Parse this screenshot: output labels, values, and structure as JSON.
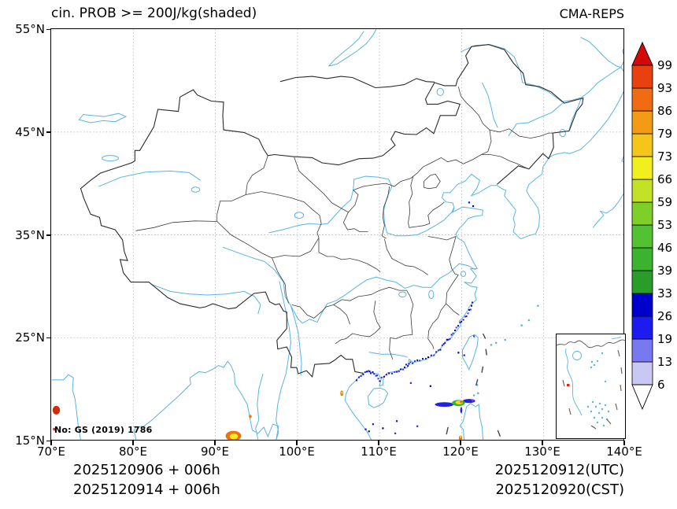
{
  "header": {
    "title": "cin. PROB >= 200J/kg(shaded)",
    "model": "CMA-REPS"
  },
  "map_note": {
    "license": "No: GS (2019) 1786"
  },
  "footer": {
    "runs": [
      "2025120906  +  006h",
      "2025120914  +  006h"
    ],
    "valid": [
      "2025120912(UTC)",
      "2025120920(CST)"
    ]
  },
  "axes": {
    "x_tick_labels": [
      "70°E",
      "80°E",
      "90°E",
      "100°E",
      "110°E",
      "120°E",
      "130°E",
      "140°E"
    ],
    "y_tick_labels": [
      "55°N",
      "45°N",
      "35°N",
      "25°N",
      "15°N"
    ],
    "lon_range": [
      70,
      140
    ],
    "lat_range": [
      15,
      55
    ],
    "grid": "dotted-gray"
  },
  "colorbar": {
    "levels": [
      6,
      13,
      19,
      26,
      33,
      39,
      46,
      53,
      59,
      66,
      73,
      79,
      86,
      93,
      99
    ],
    "segment_colors": [
      "#c8c8f2",
      "#7878f0",
      "#1c1cf0",
      "#0000cd",
      "#2a9c2a",
      "#3cb32e",
      "#52c233",
      "#7ecf28",
      "#c3e227",
      "#f2ef1f",
      "#f6c51c",
      "#f49b15",
      "#ef6c12",
      "#e8400e"
    ],
    "over_color": "#d40909",
    "under_color": "#ffffff"
  },
  "chart_data": {
    "type": "heatmap",
    "variable": "cin. PROB >= 200J/kg",
    "units": "%",
    "title": "cin. PROB >= 200J/kg(shaded)",
    "model": "CMA-REPS",
    "init_run_utc": "2025120906 + 006h",
    "init_run_cst": "2025120914 + 006h",
    "valid_utc": "2025120912(UTC)",
    "valid_cst": "2025120920(CST)",
    "lon_range": [
      70,
      140
    ],
    "lat_range": [
      15,
      55
    ],
    "levels": [
      6,
      13,
      19,
      26,
      33,
      39,
      46,
      53,
      59,
      66,
      73,
      79,
      86,
      93,
      99
    ],
    "shaded_regions": [
      {
        "name": "arabian-sea-red-blob",
        "lon": 70.62,
        "lat": 17.95,
        "rx": 0.45,
        "ry": 0.42,
        "color": "#d42a0a"
      },
      {
        "name": "arabian-sea-red-speck",
        "lon": 70.35,
        "lat": 16.1,
        "rx": 0.14,
        "ry": 0.14,
        "color": "#d42a0a"
      },
      {
        "name": "myanmar-coast-orange",
        "lon": 92.2,
        "lat": 15.45,
        "rx": 0.95,
        "ry": 0.5,
        "color": "#f07010"
      },
      {
        "name": "myanmar-coast-yellow-core",
        "lon": 92.25,
        "lat": 15.4,
        "rx": 0.5,
        "ry": 0.28,
        "color": "#f2ef1f"
      },
      {
        "name": "myanmar-inland-orange-speck",
        "lon": 94.25,
        "lat": 17.35,
        "rx": 0.16,
        "ry": 0.16,
        "color": "#f07010"
      },
      {
        "name": "vietnam-coast-orange-speck",
        "lon": 105.4,
        "lat": 19.6,
        "rx": 0.18,
        "ry": 0.26,
        "color": "#f07010"
      },
      {
        "name": "vietnam-coast-yellow-dot",
        "lon": 105.42,
        "lat": 19.65,
        "rx": 0.09,
        "ry": 0.12,
        "color": "#f2ef1f"
      },
      {
        "name": "luzon-strait-blue-west",
        "lon": 117.9,
        "lat": 18.5,
        "rx": 1.15,
        "ry": 0.22,
        "color": "#2222e0"
      },
      {
        "name": "luzon-strait-blue-east",
        "lon": 120.9,
        "lat": 18.85,
        "rx": 0.75,
        "ry": 0.2,
        "color": "#2222e0"
      },
      {
        "name": "luzon-strait-green",
        "lon": 119.6,
        "lat": 18.65,
        "rx": 0.8,
        "ry": 0.3,
        "color": "#3cb32e"
      },
      {
        "name": "luzon-strait-yellow",
        "lon": 119.7,
        "lat": 18.7,
        "rx": 0.45,
        "ry": 0.18,
        "color": "#e8e020"
      },
      {
        "name": "luzon-strait-orange",
        "lon": 119.95,
        "lat": 18.75,
        "rx": 0.18,
        "ry": 0.1,
        "color": "#f07010"
      },
      {
        "name": "luzon-strait-violet-tip",
        "lon": 121.35,
        "lat": 18.9,
        "rx": 0.12,
        "ry": 0.12,
        "color": "#7a3cd8"
      },
      {
        "name": "luzon-strait-blue-tail",
        "lon": 119.95,
        "lat": 17.95,
        "rx": 0.12,
        "ry": 0.3,
        "color": "#2222e0"
      },
      {
        "name": "luzon-bottom-orange",
        "lon": 119.85,
        "lat": 15.25,
        "rx": 0.2,
        "ry": 0.24,
        "color": "#f07010"
      },
      {
        "name": "luzon-bottom-yellow-dot",
        "lon": 119.85,
        "lat": 15.35,
        "rx": 0.1,
        "ry": 0.1,
        "color": "#f2ef1f"
      }
    ],
    "speckle_band": {
      "name": "south-china-coast-speckle",
      "description": "scattered low-probability (6-33%) dark blue cells along SE China coast, Taiwan Strait and Gulf of Tonkin",
      "colors": [
        "#1414dc",
        "#0000b4",
        "#2e2ef0"
      ]
    },
    "inset": {
      "name": "south-china-sea-inset",
      "red_speck_color": "#d42a0a"
    }
  }
}
